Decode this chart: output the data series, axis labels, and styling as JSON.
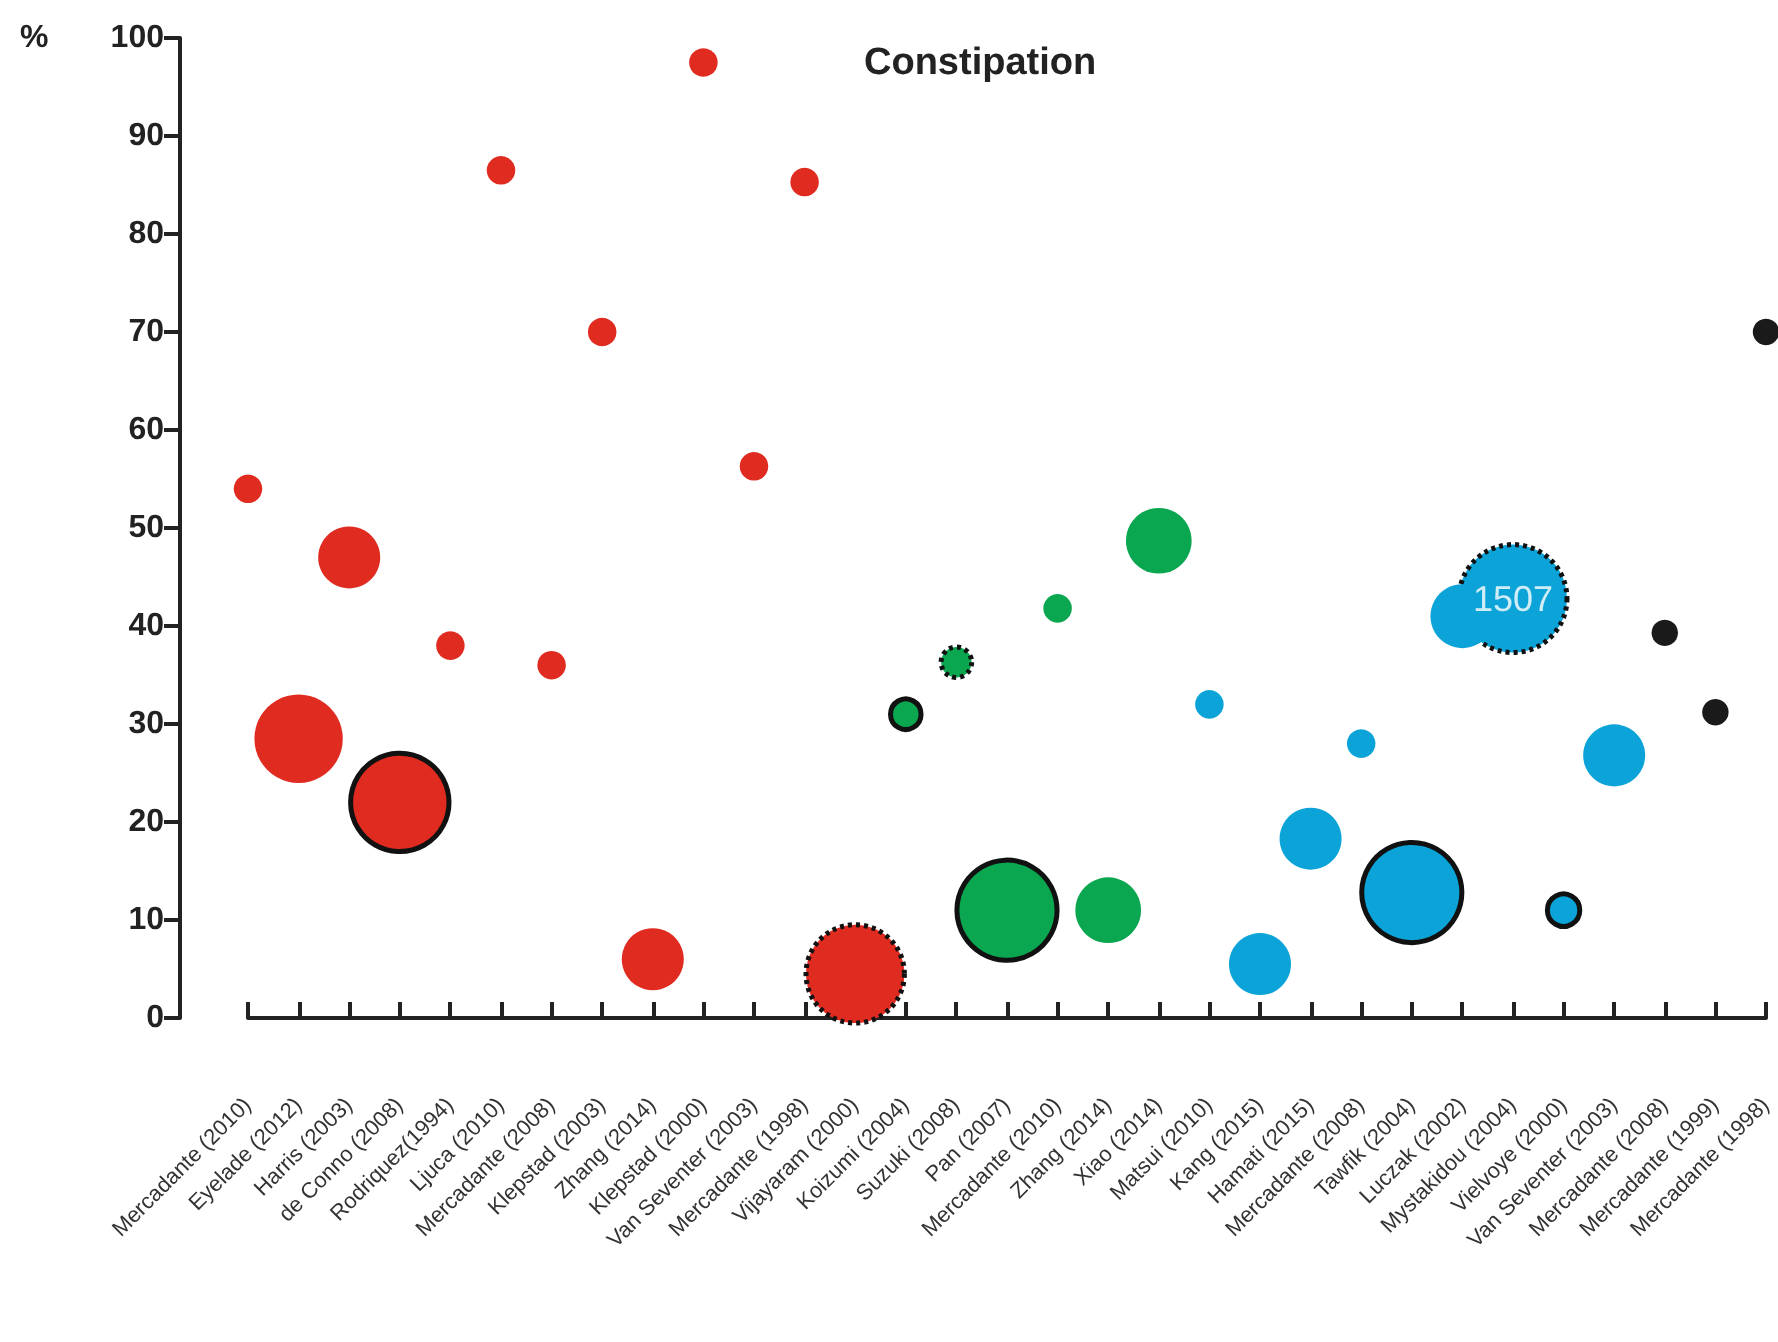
{
  "chart_data": {
    "type": "bubble",
    "title": "Constipation",
    "ylabel": "%",
    "categories": [
      "Mercadante (2010)",
      "Eyelade (2012)",
      "Harris (2003)",
      "de Conno (2008)",
      "Rodriquez(1994)",
      "Ljuca (2010)",
      "Mercadante (2008)",
      "Klepstad (2003)",
      "Zhang (2014)",
      "Klepstad (2000)",
      "Van Seventer (2003)",
      "Mercadante (1998)",
      "Vijayaram (2000)",
      "Koizumi (2004)",
      "Suzuki (2008)",
      "Pan (2007)",
      "Mercadante (2010)",
      "Zhang (2014)",
      "Xiao (2014)",
      "Matsui (2010)",
      "Kang (2015)",
      "Hamati (2015)",
      "Mercadante (2008)",
      "Tawfik (2004)",
      "Luczak (2002)",
      "Mystakidou (2004)",
      "Vielvoye (2000)",
      "Van Seventer (2003)",
      "Mercadante (2008)",
      "Mercadante (1999)",
      "Mercadante (1998)"
    ],
    "series": [
      {
        "color": "#e02b20",
        "values": [
          54,
          28.5,
          47,
          null,
          38,
          86.5,
          36,
          70,
          6,
          97.5,
          56.3,
          85.3,
          null,
          null,
          null,
          null,
          null,
          null,
          null,
          null,
          null,
          null,
          null,
          null,
          null,
          null,
          null,
          null,
          null,
          null,
          null
        ],
        "sizes": [
          0.07,
          0.67,
          0.33,
          null,
          0.07,
          0.07,
          0.07,
          0.07,
          0.33,
          0.07,
          0.07,
          0.07,
          null,
          null,
          null,
          null,
          null,
          null,
          null,
          null,
          null,
          null,
          null,
          null,
          null,
          null,
          null,
          null,
          null,
          null,
          null
        ]
      },
      {
        "color": "#e02b20",
        "line_style": "solid",
        "values": [
          null,
          null,
          null,
          22,
          null,
          null,
          null,
          null,
          null,
          null,
          null,
          null,
          null,
          null,
          null,
          null,
          null,
          null,
          null,
          null,
          null,
          null,
          null,
          null,
          null,
          null,
          null,
          null,
          null,
          null,
          null
        ],
        "sizes": [
          null,
          null,
          null,
          0.83,
          null,
          null,
          null,
          null,
          null,
          null,
          null,
          null,
          null,
          null,
          null,
          null,
          null,
          null,
          null,
          null,
          null,
          null,
          null,
          null,
          null,
          null,
          null,
          null,
          null,
          null,
          null
        ]
      },
      {
        "color": "#e02b20",
        "line_style": "dotted",
        "values": [
          null,
          null,
          null,
          null,
          null,
          null,
          null,
          null,
          null,
          null,
          null,
          null,
          4.5,
          null,
          null,
          null,
          null,
          null,
          null,
          null,
          null,
          null,
          null,
          null,
          null,
          null,
          null,
          null,
          null,
          null,
          null
        ],
        "sizes": [
          null,
          null,
          null,
          null,
          null,
          null,
          null,
          null,
          null,
          null,
          null,
          null,
          0.83,
          null,
          null,
          null,
          null,
          null,
          null,
          null,
          null,
          null,
          null,
          null,
          null,
          null,
          null,
          null,
          null,
          null,
          null
        ]
      },
      {
        "color": "#0aa650",
        "values": [
          null,
          null,
          null,
          null,
          null,
          null,
          null,
          null,
          null,
          null,
          null,
          null,
          null,
          null,
          null,
          null,
          41.8,
          11,
          48.7,
          null,
          null,
          null,
          null,
          null,
          null,
          null,
          null,
          null,
          null,
          null,
          null
        ],
        "sizes": [
          null,
          null,
          null,
          null,
          null,
          null,
          null,
          null,
          null,
          null,
          null,
          null,
          null,
          null,
          null,
          null,
          0.07,
          0.37,
          0.37,
          null,
          null,
          null,
          null,
          null,
          null,
          null,
          null,
          null,
          null,
          null,
          null
        ]
      },
      {
        "color": "#0aa650",
        "line_style": "solid",
        "values": [
          null,
          null,
          null,
          null,
          null,
          null,
          null,
          null,
          null,
          null,
          null,
          null,
          null,
          31,
          null,
          11,
          null,
          null,
          null,
          null,
          null,
          null,
          null,
          null,
          null,
          null,
          null,
          null,
          null,
          null,
          null
        ],
        "sizes": [
          null,
          null,
          null,
          null,
          null,
          null,
          null,
          null,
          null,
          null,
          null,
          null,
          null,
          0.08,
          null,
          0.86,
          null,
          null,
          null,
          null,
          null,
          null,
          null,
          null,
          null,
          null,
          null,
          null,
          null,
          null,
          null
        ]
      },
      {
        "color": "#0aa650",
        "line_style": "dotted",
        "values": [
          null,
          null,
          null,
          null,
          null,
          null,
          null,
          null,
          null,
          null,
          null,
          null,
          null,
          null,
          36.3,
          null,
          null,
          null,
          null,
          null,
          null,
          null,
          null,
          null,
          null,
          null,
          null,
          null,
          null,
          null,
          null
        ],
        "sizes": [
          null,
          null,
          null,
          null,
          null,
          null,
          null,
          null,
          null,
          null,
          null,
          null,
          null,
          null,
          0.08,
          null,
          null,
          null,
          null,
          null,
          null,
          null,
          null,
          null,
          null,
          null,
          null,
          null,
          null,
          null,
          null
        ]
      },
      {
        "color": "#0ba3d8",
        "values": [
          null,
          null,
          null,
          null,
          null,
          null,
          null,
          null,
          null,
          null,
          null,
          null,
          null,
          null,
          null,
          null,
          null,
          null,
          null,
          32,
          5.5,
          18.3,
          28,
          null,
          41,
          null,
          null,
          26.8,
          null,
          null,
          null
        ],
        "sizes": [
          null,
          null,
          null,
          null,
          null,
          null,
          null,
          null,
          null,
          null,
          null,
          null,
          null,
          null,
          null,
          null,
          null,
          null,
          null,
          0.07,
          0.33,
          0.33,
          0.07,
          null,
          0.35,
          null,
          null,
          0.33,
          null,
          null,
          null
        ]
      },
      {
        "color": "#0ba3d8",
        "line_style": "solid",
        "values": [
          null,
          null,
          null,
          null,
          null,
          null,
          null,
          null,
          null,
          null,
          null,
          null,
          null,
          null,
          null,
          null,
          null,
          null,
          null,
          null,
          null,
          null,
          null,
          12.8,
          null,
          null,
          11,
          null,
          null,
          null,
          null
        ],
        "sizes": [
          null,
          null,
          null,
          null,
          null,
          null,
          null,
          null,
          null,
          null,
          null,
          null,
          null,
          null,
          null,
          null,
          null,
          null,
          null,
          null,
          null,
          null,
          null,
          0.86,
          null,
          null,
          0.09,
          null,
          null,
          null,
          null
        ]
      },
      {
        "color": "#0ba3d8",
        "line_style": "dotted",
        "values": [
          null,
          null,
          null,
          null,
          null,
          null,
          null,
          null,
          null,
          null,
          null,
          null,
          null,
          null,
          null,
          null,
          null,
          null,
          null,
          null,
          null,
          null,
          null,
          null,
          null,
          42.8,
          null,
          null,
          null,
          null,
          null
        ],
        "sizes": [
          null,
          null,
          null,
          null,
          null,
          null,
          null,
          null,
          null,
          null,
          null,
          null,
          null,
          null,
          null,
          null,
          null,
          null,
          null,
          null,
          null,
          null,
          null,
          null,
          null,
          1,
          null,
          null,
          null,
          null,
          null
        ]
      },
      {
        "color": "#1a1a1a",
        "values": [
          null,
          null,
          null,
          null,
          null,
          null,
          null,
          null,
          null,
          null,
          null,
          null,
          null,
          null,
          null,
          null,
          null,
          null,
          null,
          null,
          null,
          null,
          null,
          null,
          null,
          null,
          null,
          null,
          39.3,
          31.2,
          70
        ],
        "sizes": [
          null,
          null,
          null,
          null,
          null,
          null,
          null,
          null,
          null,
          null,
          null,
          null,
          null,
          null,
          null,
          null,
          null,
          null,
          null,
          null,
          null,
          null,
          null,
          null,
          null,
          null,
          null,
          null,
          0.06,
          0.06,
          0.06
        ]
      }
    ],
    "annotations": [
      {
        "text": "1507",
        "x": "Mystakidou (2004)",
        "y": 42.8
      }
    ],
    "ylim": [
      0,
      100
    ],
    "yticks": [
      0,
      10,
      20,
      30,
      40,
      50,
      60,
      70,
      80,
      90,
      100
    ],
    "grid": false
  }
}
